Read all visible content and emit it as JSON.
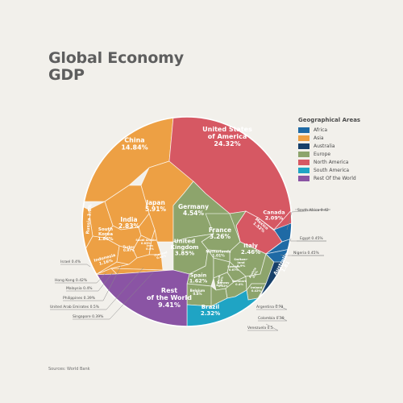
{
  "title_lines": [
    "Global Economy",
    "GDP"
  ],
  "source": "Sources: World Bank",
  "legend": {
    "title": "Geographical Areas",
    "items": [
      {
        "label": "Africa",
        "color": "#1f6aa5"
      },
      {
        "label": "Asia",
        "color": "#eda044"
      },
      {
        "label": "Australia",
        "color": "#17406a"
      },
      {
        "label": "Europe",
        "color": "#8da46c"
      },
      {
        "label": "North America",
        "color": "#d65863"
      },
      {
        "label": "South America",
        "color": "#1fa4c4"
      },
      {
        "label": "Rest Of the World",
        "color": "#8a54a4"
      }
    ]
  },
  "chart_data": {
    "type": "voronoi-treemap",
    "title": "Global Economy GDP",
    "unit": "% of world GDP",
    "series": [
      {
        "name": "Asia",
        "color": "#eda044",
        "values": [
          {
            "label": "China",
            "value": 14.84,
            "text": "China\n14.84%"
          },
          {
            "label": "Japan",
            "value": 5.91,
            "text": "Japan\n5.91%"
          },
          {
            "label": "India",
            "value": 2.83,
            "text": "India\n2.83%"
          },
          {
            "label": "South Korea",
            "value": 1.86,
            "text": "South\nKorea\n1.86%"
          },
          {
            "label": "Russia",
            "value": 1.8,
            "text": "Russia 1.8%"
          },
          {
            "label": "Indonesia",
            "value": 1.16,
            "text": "Indonesia\n1.16%"
          },
          {
            "label": "Turkey",
            "value": 0.97,
            "text": "Turkey\n0.97%"
          },
          {
            "label": "Saudi Arabia",
            "value": 0.83,
            "text": "Saudi Arabia\n0.83%"
          },
          {
            "label": "Iran",
            "value": 0.5,
            "text": "Iran\n0.5%"
          },
          {
            "label": "Thailand",
            "value": 0.46,
            "text": "Thailand\n0.46%"
          },
          {
            "label": "Israel",
            "value": 0.4,
            "text": "Israel 0.4%"
          },
          {
            "label": "Hong Kong",
            "value": 0.42,
            "text": "Hong Kong 0.42%"
          },
          {
            "label": "Malaysia",
            "value": 0.4,
            "text": "Malaysia 0.4%"
          },
          {
            "label": "Philippines",
            "value": 0.39,
            "text": "Philippines 0.39%"
          },
          {
            "label": "United Arab Emirates",
            "value": 0.5,
            "text": "United Arab Emirates 0.5%"
          },
          {
            "label": "Singapore",
            "value": 0.39,
            "text": "Singapore 0.39%"
          }
        ]
      },
      {
        "name": "North America",
        "color": "#d65863",
        "values": [
          {
            "label": "United States of America",
            "value": 24.32,
            "text": "United States\nof America\n24.32%"
          },
          {
            "label": "Canada",
            "value": 2.09,
            "text": "Canada\n2.09%"
          },
          {
            "label": "Mexico",
            "value": 1.52,
            "text": "Mexico\n1.52%"
          }
        ]
      },
      {
        "name": "Europe",
        "color": "#8da46c",
        "values": [
          {
            "label": "Germany",
            "value": 4.54,
            "text": "Germany\n4.54%"
          },
          {
            "label": "France",
            "value": 3.26,
            "text": "France\n3.26%"
          },
          {
            "label": "United Kingdom",
            "value": 3.85,
            "text": "United\nKingdom\n3.85%"
          },
          {
            "label": "Italy",
            "value": 2.46,
            "text": "Italy\n2.46%"
          },
          {
            "label": "Spain",
            "value": 1.62,
            "text": "Spain\n1.62%"
          },
          {
            "label": "Netherlands",
            "value": 1.01,
            "text": "Netherlands\n1.01%"
          },
          {
            "label": "Switzerland",
            "value": 0.9,
            "text": "Switzer-\nland\n0.9%"
          },
          {
            "label": "Sweden",
            "value": 0.67,
            "text": "Sweden\n0.67%"
          },
          {
            "label": "Poland",
            "value": 0.64,
            "text": "Poland\n0.64%"
          },
          {
            "label": "Belgium",
            "value": 0.6,
            "text": "Belgium\n0.6%"
          },
          {
            "label": "Norway",
            "value": 0.52,
            "text": "Norway\n0.52%"
          },
          {
            "label": "Denmark",
            "value": 0.4,
            "text": "Denmark\n0.4%"
          },
          {
            "label": "Austria",
            "value": 0.5,
            "text": "Austria\n0.5%"
          },
          {
            "label": "Ireland",
            "value": 0.42,
            "text": "Ireland\n0.42%"
          }
        ]
      },
      {
        "name": "Australia",
        "color": "#17406a",
        "values": [
          {
            "label": "Australia",
            "value": 1.81,
            "text": "Australia\n1.81"
          }
        ]
      },
      {
        "name": "South America",
        "color": "#1fa4c4",
        "values": [
          {
            "label": "Brazil",
            "value": 2.32,
            "text": "Brazil\n2.32%"
          },
          {
            "label": "Argentina",
            "value": 0.79,
            "text": "Argentina 0.79"
          },
          {
            "label": "Colombia",
            "value": 0.39,
            "text": "Colombia 0.39"
          },
          {
            "label": "Venezuela",
            "value": 0.5,
            "text": "Venezuela 0.5"
          }
        ]
      },
      {
        "name": "Africa",
        "color": "#1f6aa5",
        "values": [
          {
            "label": "South Africa",
            "value": 0.42,
            "text": "South Africa 0.42"
          },
          {
            "label": "Egypt",
            "value": 0.45,
            "text": "Egypt 0.45%"
          },
          {
            "label": "Nigeria",
            "value": 0.45,
            "text": "Nigeria 0.45%"
          }
        ]
      },
      {
        "name": "Rest Of the World",
        "color": "#8a54a4",
        "values": [
          {
            "label": "Rest of the World",
            "value": 9.41,
            "text": "Rest\nof the World\n9.41%"
          }
        ]
      }
    ]
  }
}
